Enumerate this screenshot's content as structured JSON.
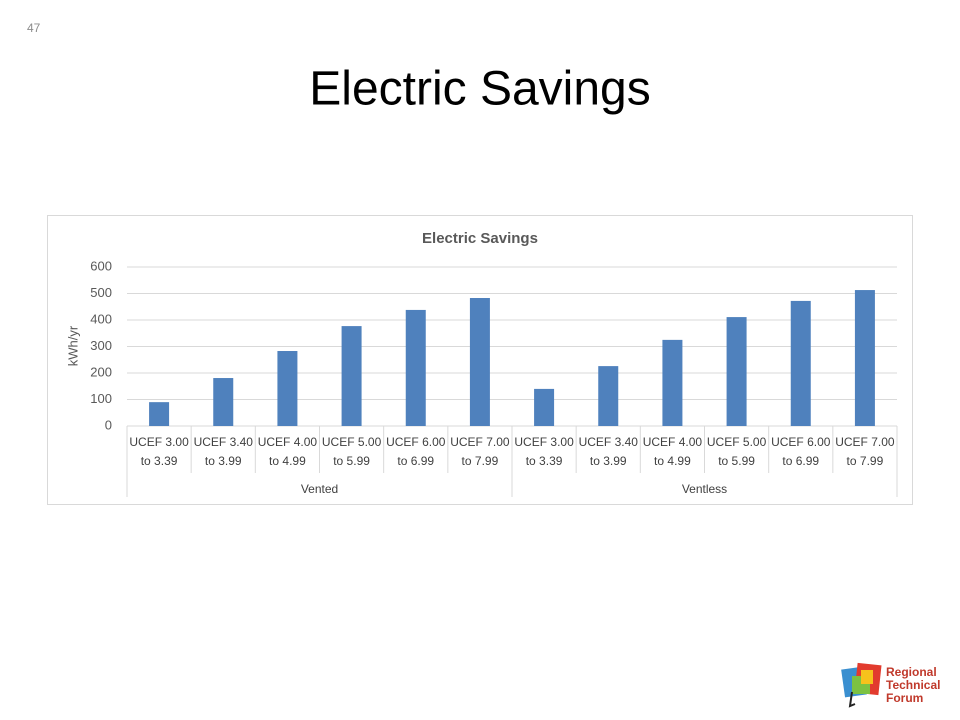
{
  "slide_number": "47",
  "slide_title": "Electric Savings",
  "logo": {
    "lines": [
      "Regional",
      "Technical",
      "Forum"
    ]
  },
  "chart_data": {
    "type": "bar",
    "title": "Electric Savings",
    "y_label": "kWh/yr",
    "categories": [
      "UCEF 3.00 to 3.39",
      "UCEF 3.40 to 3.99",
      "UCEF 4.00 to 4.99",
      "UCEF 5.00 to 5.99",
      "UCEF 6.00 to 6.99",
      "UCEF 7.00 to 7.99",
      "UCEF 3.00 to 3.39",
      "UCEF 3.40 to 3.99",
      "UCEF 4.00 to 4.99",
      "UCEF 5.00 to 5.99",
      "UCEF 6.00 to 6.99",
      "UCEF 7.00 to 7.99"
    ],
    "groups": [
      "Vented",
      "Ventless"
    ],
    "values": [
      90,
      181,
      283,
      377,
      438,
      483,
      140,
      226,
      325,
      411,
      472,
      513
    ],
    "color": "#4f81bd",
    "ylim": [
      0,
      600
    ],
    "yticks": [
      0,
      100,
      200,
      300,
      400,
      500,
      600
    ],
    "grid": true
  }
}
